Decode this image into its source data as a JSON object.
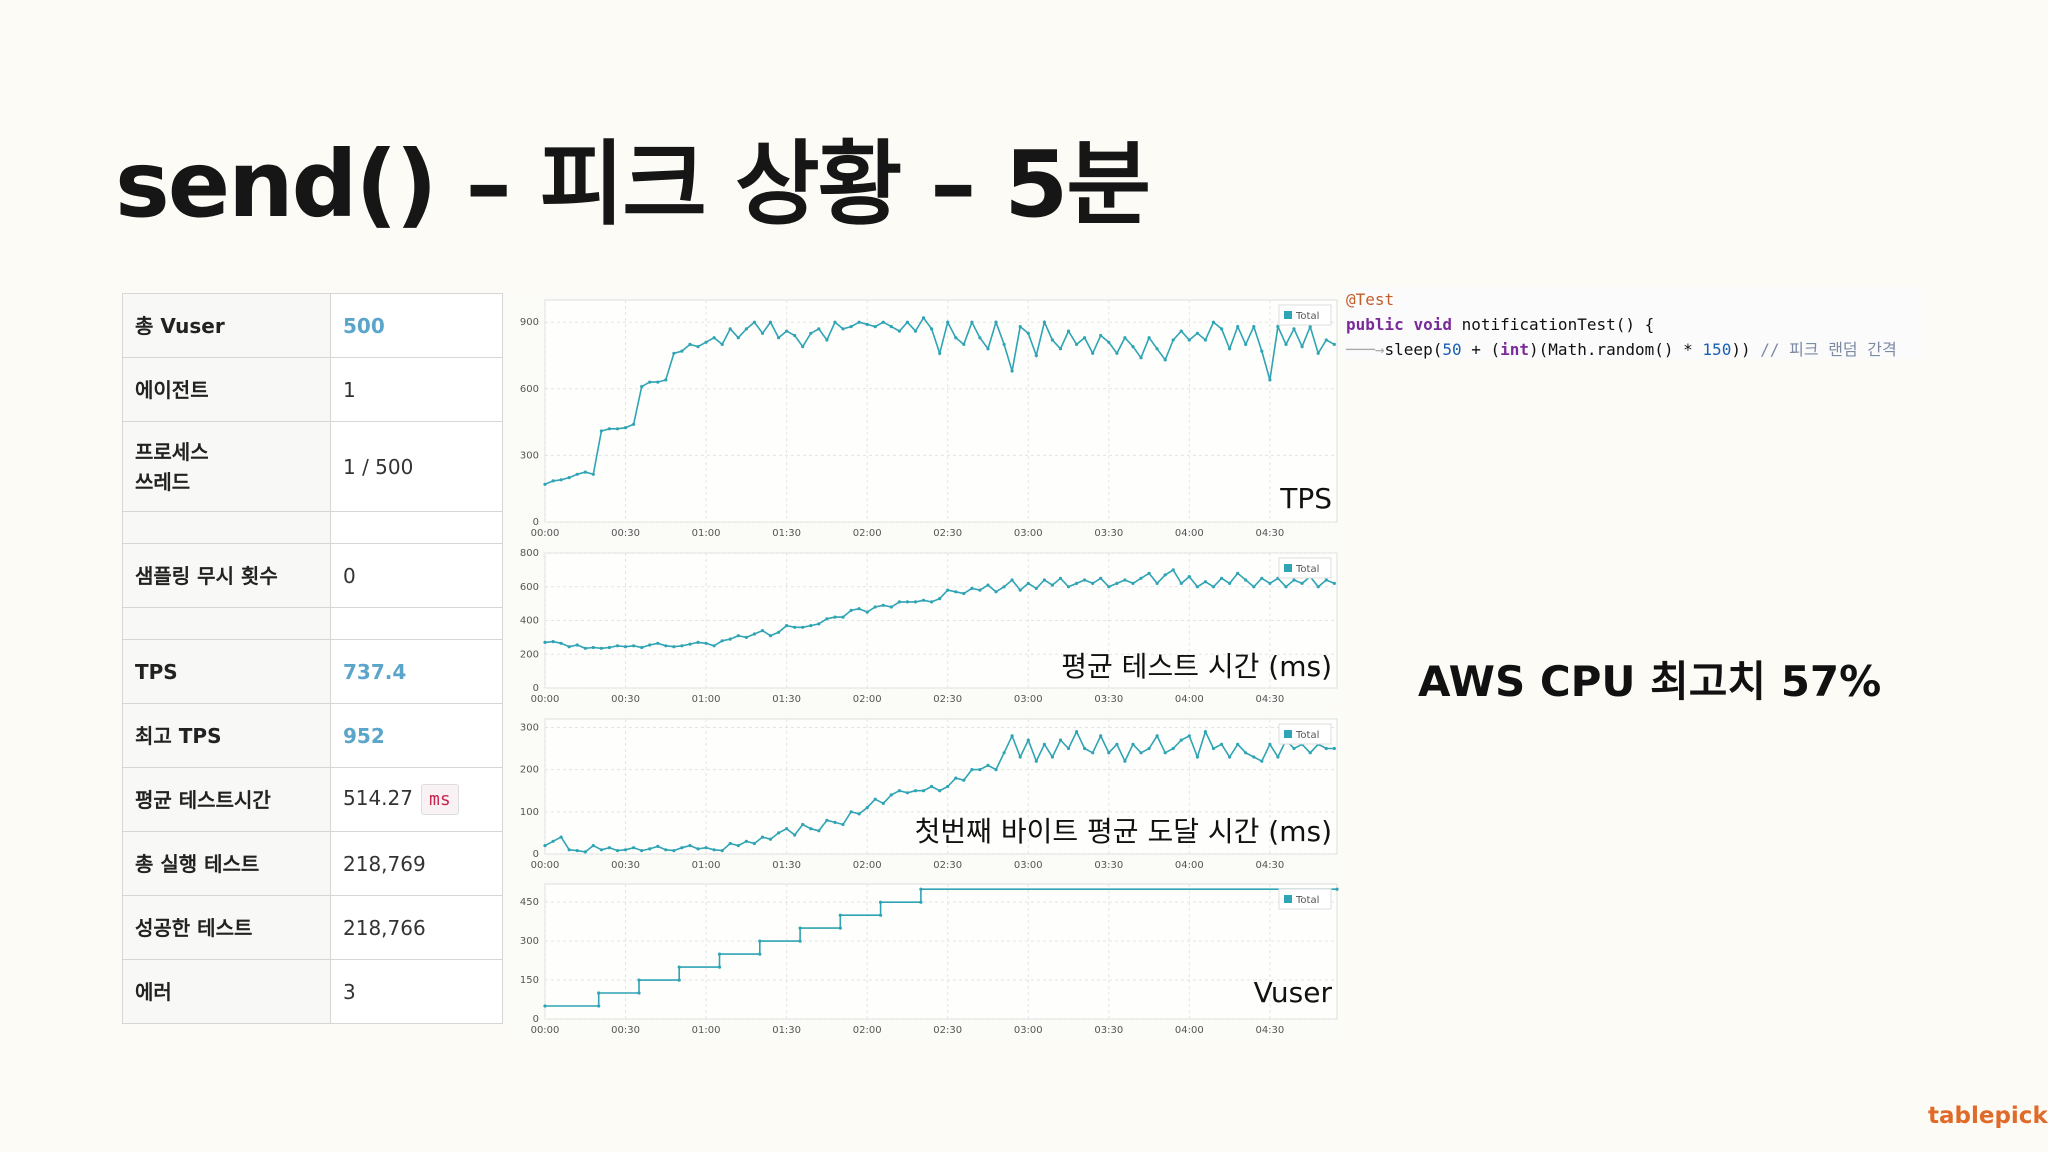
{
  "slide": {
    "title": "send() – 피크 상황 – 5분"
  },
  "stats": [
    {
      "label": "총 Vuser",
      "value": "500",
      "highlight": true
    },
    {
      "label": "에이전트",
      "value": "1"
    },
    {
      "label": "프로세스\n쓰레드",
      "value": "1 / 500"
    },
    {
      "label": "",
      "value": ""
    },
    {
      "label": "샘플링 무시 횟수",
      "value": "0"
    },
    {
      "label": "",
      "value": ""
    },
    {
      "label": "TPS",
      "value": "737.4",
      "highlight": true
    },
    {
      "label": "최고 TPS",
      "value": "952",
      "highlight": true
    },
    {
      "label": "평균 테스트시간",
      "value": "514.27",
      "unit": "ms"
    },
    {
      "label": "총 실행 테스트",
      "value": "218,769"
    },
    {
      "label": "성공한 테스트",
      "value": "218,766"
    },
    {
      "label": "에러",
      "value": "3"
    }
  ],
  "code": {
    "annotation": "@Test",
    "kw_public": "public",
    "kw_void": "void",
    "method": " notificationTest() {",
    "sleep_a": "sleep(",
    "num_50": "50",
    "plus": " + (",
    "kw_int": "int",
    "math": ")(Math.random() * ",
    "num_150": "150",
    "close": "))",
    "comment": " // 피크 랜덤 간격"
  },
  "aws_note": "AWS CPU 최고치 57%",
  "brand": "tablepick",
  "colors": {
    "line": "#2fa4b4",
    "accent": "#5aa5c9",
    "brand": "#e06a28",
    "grid": "#e4e4e4"
  },
  "chart_data": [
    {
      "type": "line",
      "title": "TPS",
      "legend": "Total",
      "legend_position": "top-right",
      "x": [
        "00:00",
        "00:30",
        "01:00",
        "01:30",
        "02:00",
        "02:30",
        "03:00",
        "03:30",
        "04:00",
        "04:30"
      ],
      "xlim": [
        0,
        295
      ],
      "ylim": [
        0,
        1000
      ],
      "yticks": [
        0,
        300,
        600,
        900
      ],
      "grid": true,
      "points": [
        [
          0,
          170
        ],
        [
          3,
          185
        ],
        [
          6,
          190
        ],
        [
          9,
          200
        ],
        [
          12,
          215
        ],
        [
          15,
          225
        ],
        [
          18,
          215
        ],
        [
          21,
          410
        ],
        [
          24,
          420
        ],
        [
          27,
          420
        ],
        [
          30,
          425
        ],
        [
          33,
          440
        ],
        [
          36,
          610
        ],
        [
          39,
          630
        ],
        [
          42,
          630
        ],
        [
          45,
          640
        ],
        [
          48,
          760
        ],
        [
          51,
          770
        ],
        [
          54,
          800
        ],
        [
          57,
          790
        ],
        [
          60,
          810
        ],
        [
          63,
          830
        ],
        [
          66,
          800
        ],
        [
          69,
          870
        ],
        [
          72,
          830
        ],
        [
          75,
          870
        ],
        [
          78,
          900
        ],
        [
          81,
          850
        ],
        [
          84,
          900
        ],
        [
          87,
          830
        ],
        [
          90,
          860
        ],
        [
          93,
          840
        ],
        [
          96,
          790
        ],
        [
          99,
          850
        ],
        [
          102,
          870
        ],
        [
          105,
          820
        ],
        [
          108,
          900
        ],
        [
          111,
          870
        ],
        [
          114,
          880
        ],
        [
          117,
          900
        ],
        [
          120,
          890
        ],
        [
          123,
          880
        ],
        [
          126,
          900
        ],
        [
          129,
          880
        ],
        [
          132,
          860
        ],
        [
          135,
          900
        ],
        [
          138,
          860
        ],
        [
          141,
          920
        ],
        [
          144,
          870
        ],
        [
          147,
          760
        ],
        [
          150,
          900
        ],
        [
          153,
          830
        ],
        [
          156,
          800
        ],
        [
          159,
          900
        ],
        [
          162,
          830
        ],
        [
          165,
          780
        ],
        [
          168,
          900
        ],
        [
          171,
          800
        ],
        [
          174,
          680
        ],
        [
          177,
          880
        ],
        [
          180,
          850
        ],
        [
          183,
          750
        ],
        [
          186,
          900
        ],
        [
          189,
          820
        ],
        [
          192,
          780
        ],
        [
          195,
          860
        ],
        [
          198,
          800
        ],
        [
          201,
          830
        ],
        [
          204,
          760
        ],
        [
          207,
          840
        ],
        [
          210,
          810
        ],
        [
          213,
          760
        ],
        [
          216,
          830
        ],
        [
          219,
          790
        ],
        [
          222,
          740
        ],
        [
          225,
          830
        ],
        [
          228,
          780
        ],
        [
          231,
          730
        ],
        [
          234,
          820
        ],
        [
          237,
          860
        ],
        [
          240,
          820
        ],
        [
          243,
          850
        ],
        [
          246,
          820
        ],
        [
          249,
          900
        ],
        [
          252,
          870
        ],
        [
          255,
          780
        ],
        [
          258,
          880
        ],
        [
          261,
          800
        ],
        [
          264,
          880
        ],
        [
          267,
          770
        ],
        [
          270,
          640
        ],
        [
          273,
          880
        ],
        [
          276,
          800
        ],
        [
          279,
          870
        ],
        [
          282,
          790
        ],
        [
          285,
          880
        ],
        [
          288,
          760
        ],
        [
          291,
          820
        ],
        [
          294,
          800
        ]
      ]
    },
    {
      "type": "line",
      "title": "평균 테스트 시간 (ms)",
      "legend": "Total",
      "legend_position": "top-right",
      "x": [
        "00:00",
        "00:30",
        "01:00",
        "01:30",
        "02:00",
        "02:30",
        "03:00",
        "03:30",
        "04:00",
        "04:30"
      ],
      "xlim": [
        0,
        295
      ],
      "ylim": [
        0,
        800
      ],
      "yticks": [
        0,
        200,
        400,
        600,
        800
      ],
      "grid": true,
      "points": [
        [
          0,
          270
        ],
        [
          3,
          275
        ],
        [
          6,
          265
        ],
        [
          9,
          245
        ],
        [
          12,
          255
        ],
        [
          15,
          235
        ],
        [
          18,
          240
        ],
        [
          21,
          235
        ],
        [
          24,
          240
        ],
        [
          27,
          250
        ],
        [
          30,
          245
        ],
        [
          33,
          250
        ],
        [
          36,
          240
        ],
        [
          39,
          255
        ],
        [
          42,
          265
        ],
        [
          45,
          250
        ],
        [
          48,
          245
        ],
        [
          51,
          250
        ],
        [
          54,
          260
        ],
        [
          57,
          270
        ],
        [
          60,
          265
        ],
        [
          63,
          250
        ],
        [
          66,
          280
        ],
        [
          69,
          290
        ],
        [
          72,
          310
        ],
        [
          75,
          300
        ],
        [
          78,
          320
        ],
        [
          81,
          340
        ],
        [
          84,
          310
        ],
        [
          87,
          330
        ],
        [
          90,
          370
        ],
        [
          93,
          360
        ],
        [
          96,
          360
        ],
        [
          99,
          370
        ],
        [
          102,
          380
        ],
        [
          105,
          410
        ],
        [
          108,
          420
        ],
        [
          111,
          420
        ],
        [
          114,
          460
        ],
        [
          117,
          470
        ],
        [
          120,
          450
        ],
        [
          123,
          480
        ],
        [
          126,
          490
        ],
        [
          129,
          480
        ],
        [
          132,
          510
        ],
        [
          135,
          510
        ],
        [
          138,
          510
        ],
        [
          141,
          520
        ],
        [
          144,
          510
        ],
        [
          147,
          530
        ],
        [
          150,
          580
        ],
        [
          153,
          570
        ],
        [
          156,
          560
        ],
        [
          159,
          590
        ],
        [
          162,
          580
        ],
        [
          165,
          610
        ],
        [
          168,
          570
        ],
        [
          171,
          600
        ],
        [
          174,
          640
        ],
        [
          177,
          580
        ],
        [
          180,
          620
        ],
        [
          183,
          590
        ],
        [
          186,
          640
        ],
        [
          189,
          610
        ],
        [
          192,
          650
        ],
        [
          195,
          600
        ],
        [
          198,
          620
        ],
        [
          201,
          640
        ],
        [
          204,
          620
        ],
        [
          207,
          650
        ],
        [
          210,
          600
        ],
        [
          213,
          620
        ],
        [
          216,
          640
        ],
        [
          219,
          620
        ],
        [
          222,
          650
        ],
        [
          225,
          680
        ],
        [
          228,
          620
        ],
        [
          231,
          670
        ],
        [
          234,
          700
        ],
        [
          237,
          620
        ],
        [
          240,
          660
        ],
        [
          243,
          600
        ],
        [
          246,
          630
        ],
        [
          249,
          600
        ],
        [
          252,
          650
        ],
        [
          255,
          620
        ],
        [
          258,
          680
        ],
        [
          261,
          640
        ],
        [
          264,
          600
        ],
        [
          267,
          650
        ],
        [
          270,
          620
        ],
        [
          273,
          650
        ],
        [
          276,
          600
        ],
        [
          279,
          640
        ],
        [
          282,
          620
        ],
        [
          285,
          660
        ],
        [
          288,
          600
        ],
        [
          291,
          640
        ],
        [
          294,
          620
        ]
      ]
    },
    {
      "type": "line",
      "title": "첫번째 바이트 평균 도달 시간 (ms)",
      "legend": "Total",
      "legend_position": "top-right",
      "x": [
        "00:00",
        "00:30",
        "01:00",
        "01:30",
        "02:00",
        "02:30",
        "03:00",
        "03:30",
        "04:00",
        "04:30"
      ],
      "xlim": [
        0,
        295
      ],
      "ylim": [
        0,
        320
      ],
      "yticks": [
        0,
        100,
        200,
        300
      ],
      "grid": true,
      "points": [
        [
          0,
          20
        ],
        [
          3,
          30
        ],
        [
          6,
          40
        ],
        [
          9,
          10
        ],
        [
          12,
          8
        ],
        [
          15,
          5
        ],
        [
          18,
          20
        ],
        [
          21,
          10
        ],
        [
          24,
          15
        ],
        [
          27,
          8
        ],
        [
          30,
          10
        ],
        [
          33,
          15
        ],
        [
          36,
          8
        ],
        [
          39,
          12
        ],
        [
          42,
          18
        ],
        [
          45,
          10
        ],
        [
          48,
          8
        ],
        [
          51,
          15
        ],
        [
          54,
          20
        ],
        [
          57,
          12
        ],
        [
          60,
          15
        ],
        [
          63,
          10
        ],
        [
          66,
          8
        ],
        [
          69,
          25
        ],
        [
          72,
          20
        ],
        [
          75,
          30
        ],
        [
          78,
          25
        ],
        [
          81,
          40
        ],
        [
          84,
          35
        ],
        [
          87,
          50
        ],
        [
          90,
          60
        ],
        [
          93,
          45
        ],
        [
          96,
          70
        ],
        [
          99,
          60
        ],
        [
          102,
          55
        ],
        [
          105,
          80
        ],
        [
          108,
          75
        ],
        [
          111,
          70
        ],
        [
          114,
          100
        ],
        [
          117,
          95
        ],
        [
          120,
          110
        ],
        [
          123,
          130
        ],
        [
          126,
          120
        ],
        [
          129,
          140
        ],
        [
          132,
          150
        ],
        [
          135,
          145
        ],
        [
          138,
          150
        ],
        [
          141,
          150
        ],
        [
          144,
          160
        ],
        [
          147,
          150
        ],
        [
          150,
          160
        ],
        [
          153,
          180
        ],
        [
          156,
          175
        ],
        [
          159,
          200
        ],
        [
          162,
          200
        ],
        [
          165,
          210
        ],
        [
          168,
          200
        ],
        [
          171,
          240
        ],
        [
          174,
          280
        ],
        [
          177,
          230
        ],
        [
          180,
          270
        ],
        [
          183,
          220
        ],
        [
          186,
          260
        ],
        [
          189,
          230
        ],
        [
          192,
          270
        ],
        [
          195,
          250
        ],
        [
          198,
          290
        ],
        [
          201,
          250
        ],
        [
          204,
          240
        ],
        [
          207,
          280
        ],
        [
          210,
          240
        ],
        [
          213,
          260
        ],
        [
          216,
          220
        ],
        [
          219,
          260
        ],
        [
          222,
          240
        ],
        [
          225,
          250
        ],
        [
          228,
          280
        ],
        [
          231,
          240
        ],
        [
          234,
          250
        ],
        [
          237,
          270
        ],
        [
          240,
          280
        ],
        [
          243,
          230
        ],
        [
          246,
          290
        ],
        [
          249,
          250
        ],
        [
          252,
          260
        ],
        [
          255,
          230
        ],
        [
          258,
          260
        ],
        [
          261,
          240
        ],
        [
          264,
          230
        ],
        [
          267,
          220
        ],
        [
          270,
          260
        ],
        [
          273,
          230
        ],
        [
          276,
          270
        ],
        [
          279,
          250
        ],
        [
          282,
          260
        ],
        [
          285,
          240
        ],
        [
          288,
          260
        ],
        [
          291,
          250
        ],
        [
          294,
          250
        ]
      ]
    },
    {
      "type": "line",
      "title": "Vuser",
      "legend": "Total",
      "legend_position": "top-right",
      "x": [
        "00:00",
        "00:30",
        "01:00",
        "01:30",
        "02:00",
        "02:30",
        "03:00",
        "03:30",
        "04:00",
        "04:30"
      ],
      "xlim": [
        0,
        295
      ],
      "ylim": [
        0,
        520
      ],
      "yticks": [
        0,
        150,
        300,
        450
      ],
      "grid": true,
      "points": [
        [
          0,
          50
        ],
        [
          20,
          50
        ],
        [
          20,
          100
        ],
        [
          35,
          100
        ],
        [
          35,
          150
        ],
        [
          50,
          150
        ],
        [
          50,
          200
        ],
        [
          65,
          200
        ],
        [
          65,
          250
        ],
        [
          80,
          250
        ],
        [
          80,
          300
        ],
        [
          95,
          300
        ],
        [
          95,
          350
        ],
        [
          110,
          350
        ],
        [
          110,
          400
        ],
        [
          125,
          400
        ],
        [
          125,
          450
        ],
        [
          140,
          450
        ],
        [
          140,
          500
        ],
        [
          295,
          500
        ]
      ]
    }
  ]
}
